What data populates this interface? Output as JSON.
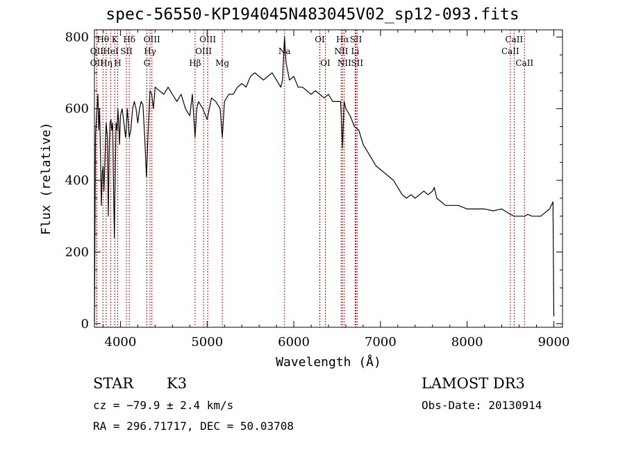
{
  "title": "spec-56550-KP194045N483045V02_sp12-093.fits",
  "footer": {
    "class": "STAR",
    "subclass": "K3",
    "survey": "LAMOST DR3",
    "cz": "cz = −79.9 ± 2.4 km/s",
    "obs_date": "Obs-Date: 20130914",
    "coords": "RA = 296.71717, DEC =  50.03708"
  },
  "chart_data": {
    "type": "line",
    "xlabel": "Wavelength (Å)",
    "ylabel": "Flux (relative)",
    "xlim": [
      3700,
      9100
    ],
    "ylim": [
      -10,
      820
    ],
    "xticks": [
      4000,
      5000,
      6000,
      7000,
      8000,
      9000
    ],
    "yticks": [
      0,
      200,
      400,
      600,
      800
    ],
    "line_color": "#000000",
    "marker_color": "#cc0000",
    "series": [
      {
        "x": [
          3700,
          3705,
          3712,
          3720,
          3730,
          3740,
          3750,
          3760,
          3770,
          3780,
          3790,
          3800,
          3810,
          3820,
          3835,
          3850,
          3860,
          3870,
          3880,
          3890,
          3900,
          3910,
          3920,
          3930,
          3940,
          3950,
          3960,
          3970,
          3980,
          3990,
          4000,
          4020,
          4040,
          4060,
          4080,
          4101,
          4120,
          4140,
          4160,
          4180,
          4200,
          4220,
          4240,
          4260,
          4280,
          4300,
          4320,
          4340,
          4360,
          4380,
          4400,
          4450,
          4500,
          4550,
          4600,
          4650,
          4700,
          4750,
          4800,
          4830,
          4861,
          4880,
          4900,
          4950,
          5000,
          5050,
          5100,
          5150,
          5175,
          5200,
          5250,
          5300,
          5350,
          5400,
          5450,
          5500,
          5550,
          5600,
          5650,
          5700,
          5750,
          5800,
          5850,
          5870,
          5893,
          5910,
          5950,
          6000,
          6050,
          6100,
          6150,
          6200,
          6250,
          6300,
          6350,
          6400,
          6450,
          6500,
          6540,
          6563,
          6580,
          6600,
          6650,
          6700,
          6750,
          6800,
          6850,
          6900,
          6950,
          7000,
          7050,
          7100,
          7150,
          7200,
          7250,
          7300,
          7350,
          7400,
          7450,
          7500,
          7550,
          7600,
          7620,
          7650,
          7700,
          7750,
          7800,
          7900,
          8000,
          8100,
          8200,
          8300,
          8400,
          8500,
          8542,
          8600,
          8662,
          8700,
          8750,
          8800,
          8850,
          8900,
          8950,
          8990,
          9000
        ],
        "y": [
          5,
          210,
          530,
          560,
          600,
          640,
          540,
          600,
          470,
          330,
          420,
          440,
          370,
          450,
          560,
          520,
          300,
          480,
          560,
          570,
          540,
          560,
          380,
          240,
          430,
          560,
          540,
          600,
          560,
          500,
          580,
          600,
          560,
          520,
          600,
          520,
          540,
          600,
          620,
          600,
          560,
          600,
          620,
          610,
          520,
          410,
          540,
          650,
          640,
          600,
          660,
          650,
          640,
          660,
          640,
          620,
          640,
          600,
          580,
          640,
          520,
          600,
          620,
          600,
          570,
          630,
          620,
          600,
          520,
          620,
          640,
          640,
          660,
          670,
          660,
          690,
          700,
          690,
          680,
          690,
          700,
          680,
          660,
          680,
          800,
          730,
          680,
          690,
          660,
          660,
          650,
          640,
          650,
          640,
          630,
          640,
          620,
          620,
          620,
          490,
          620,
          600,
          580,
          550,
          540,
          500,
          480,
          460,
          440,
          430,
          420,
          410,
          400,
          380,
          360,
          350,
          360,
          350,
          360,
          370,
          360,
          370,
          380,
          350,
          340,
          330,
          330,
          330,
          320,
          320,
          320,
          315,
          320,
          305,
          300,
          300,
          300,
          305,
          300,
          300,
          300,
          310,
          320,
          340,
          20
        ]
      }
    ],
    "lines": [
      {
        "label": "Hθ",
        "wl": 3798,
        "row": 0
      },
      {
        "label": "K",
        "wl": 3934,
        "row": 0
      },
      {
        "label": "Hδ",
        "wl": 4102,
        "row": 0
      },
      {
        "label": "OIII",
        "wl": 4363,
        "row": 0
      },
      {
        "label": "OIII",
        "wl": 5007,
        "row": 0
      },
      {
        "label": "OI",
        "wl": 6300,
        "row": 0
      },
      {
        "label": "Hα",
        "wl": 6563,
        "row": 0
      },
      {
        "label": "SII",
        "wl": 6717,
        "row": 0
      },
      {
        "label": "CaII",
        "wl": 8542,
        "row": 0
      },
      {
        "label": "OII",
        "wl": 3727,
        "row": 1
      },
      {
        "label": "HeI",
        "wl": 3889,
        "row": 1
      },
      {
        "label": "SII",
        "wl": 4069,
        "row": 1
      },
      {
        "label": "Hγ",
        "wl": 4341,
        "row": 1
      },
      {
        "label": "OIII",
        "wl": 4959,
        "row": 1
      },
      {
        "label": "Na",
        "wl": 5893,
        "row": 1
      },
      {
        "label": "NII",
        "wl": 6548,
        "row": 1
      },
      {
        "label": "Li",
        "wl": 6708,
        "row": 1
      },
      {
        "label": "CaII",
        "wl": 8498,
        "row": 1
      },
      {
        "label": "OII",
        "wl": 3727,
        "row": 2
      },
      {
        "label": "Hη",
        "wl": 3835,
        "row": 2
      },
      {
        "label": "H",
        "wl": 3969,
        "row": 2
      },
      {
        "label": "G",
        "wl": 4305,
        "row": 2
      },
      {
        "label": "Hβ",
        "wl": 4861,
        "row": 2
      },
      {
        "label": "Mg",
        "wl": 5175,
        "row": 2
      },
      {
        "label": "OI",
        "wl": 6364,
        "row": 2
      },
      {
        "label": "NII",
        "wl": 6583,
        "row": 2
      },
      {
        "label": "SII",
        "wl": 6731,
        "row": 2
      },
      {
        "label": "CaII",
        "wl": 8662,
        "row": 2
      }
    ]
  }
}
